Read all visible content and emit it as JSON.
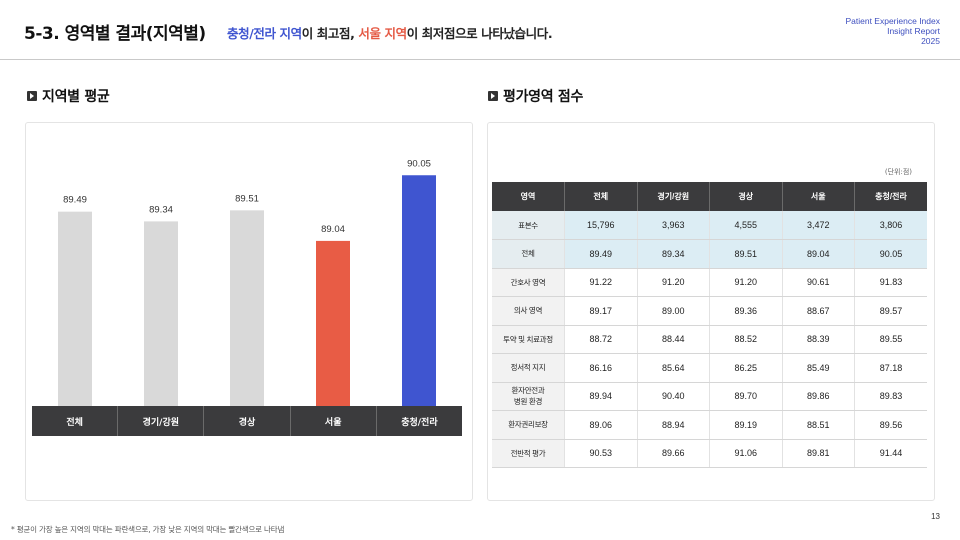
{
  "header": {
    "title": "5-3. 영역별 결과(지역별)",
    "summary": {
      "part1": "충청/전라 지역",
      "part2": "이 최고점, ",
      "part3": "서울 지역",
      "part4": "이 최저점으로 나타났습니다."
    },
    "brand": {
      "line1": "Patient Experience Index",
      "line2": "Insight Report",
      "line3": "2025"
    }
  },
  "left_section": {
    "title": "지역별 평균"
  },
  "right_section": {
    "title": "평가영역 점수",
    "unit": "(단위:점)"
  },
  "colors": {
    "neutral_bar": "#d9d9d9",
    "low_bar": "#e85c45",
    "high_bar": "#3f55d0",
    "header_bg": "#3b3b3d",
    "highlight_row": "#dcedf4"
  },
  "chart_data": {
    "type": "bar",
    "categories": [
      "전체",
      "경기/강원",
      "경상",
      "서울",
      "충청/전라"
    ],
    "values": [
      89.49,
      89.34,
      89.51,
      89.04,
      90.05
    ],
    "bar_colors": [
      "#d9d9d9",
      "#d9d9d9",
      "#d9d9d9",
      "#e85c45",
      "#3f55d0"
    ],
    "grid": false
  },
  "table": {
    "headers": [
      "영역",
      "전체",
      "경기/강원",
      "경상",
      "서울",
      "충청/전라"
    ],
    "rows": [
      {
        "label": "표본수",
        "values": [
          "15,796",
          "3,963",
          "4,555",
          "3,472",
          "3,806"
        ],
        "highlight": true
      },
      {
        "label": "전체",
        "values": [
          "89.49",
          "89.34",
          "89.51",
          "89.04",
          "90.05"
        ],
        "highlight": true
      },
      {
        "label": "간호사 영역",
        "values": [
          "91.22",
          "91.20",
          "91.20",
          "90.61",
          "91.83"
        ],
        "highlight": false
      },
      {
        "label": "의사 영역",
        "values": [
          "89.17",
          "89.00",
          "89.36",
          "88.67",
          "89.57"
        ],
        "highlight": false
      },
      {
        "label": "투약 및 치료과정",
        "values": [
          "88.72",
          "88.44",
          "88.52",
          "88.39",
          "89.55"
        ],
        "highlight": false
      },
      {
        "label": "정서적 지지",
        "values": [
          "86.16",
          "85.64",
          "86.25",
          "85.49",
          "87.18"
        ],
        "highlight": false
      },
      {
        "label": "환자안전과\n병원 환경",
        "values": [
          "89.94",
          "90.40",
          "89.70",
          "89.86",
          "89.83"
        ],
        "highlight": false
      },
      {
        "label": "환자권리보장",
        "values": [
          "89.06",
          "88.94",
          "89.19",
          "88.51",
          "89.56"
        ],
        "highlight": false
      },
      {
        "label": "전반적 평가",
        "values": [
          "90.53",
          "89.66",
          "91.06",
          "89.81",
          "91.44"
        ],
        "highlight": false
      }
    ]
  },
  "footnote": "* 평균이 가장 높은 지역의 막대는 파란색으로, 가장 낮은 지역의 막대는 빨간색으로 나타냄",
  "page_number": "13"
}
